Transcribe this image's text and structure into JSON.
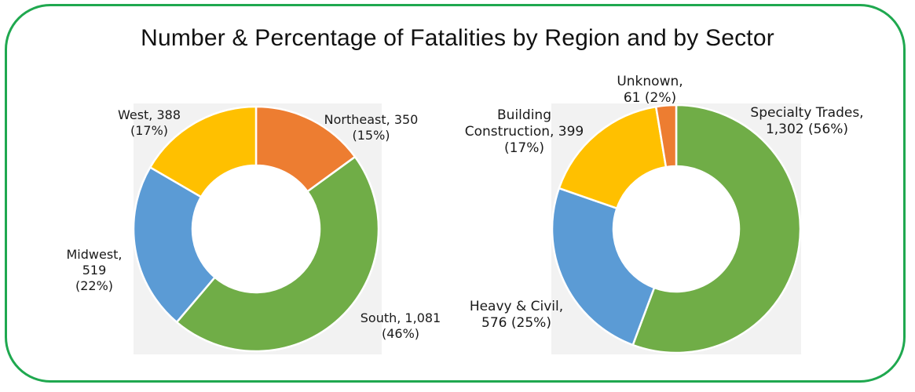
{
  "title": "Number & Percentage of Fatalities by Region and by Sector",
  "colors": {
    "border": "#1fa84f"
  },
  "chart_data": [
    {
      "type": "pie",
      "donut": true,
      "categories": [
        "Northeast",
        "South",
        "Midwest",
        "West"
      ],
      "values": [
        350,
        1081,
        519,
        388
      ],
      "percentages": [
        15,
        46,
        22,
        17
      ],
      "colors": [
        "#ed7d31",
        "#70ad47",
        "#5b9bd5",
        "#ffc000"
      ],
      "labels": [
        "Northeast, 350\n(15%)",
        "South, 1,081\n(46%)",
        "Midwest,\n519\n(22%)",
        "West, 388\n(17%)"
      ]
    },
    {
      "type": "pie",
      "donut": true,
      "categories": [
        "Specialty Trades",
        "Heavy & Civil",
        "Building Construction",
        "Unknown"
      ],
      "values": [
        1302,
        576,
        399,
        61
      ],
      "percentages": [
        56,
        25,
        17,
        2
      ],
      "colors": [
        "#70ad47",
        "#5b9bd5",
        "#ffc000",
        "#ed7d31"
      ],
      "labels": [
        "Specialty Trades,\n1,302 (56%)",
        "Heavy & Civil,\n576 (25%)",
        "Building\nConstruction, 399\n(17%)",
        "Unknown,\n61 (2%)"
      ]
    }
  ]
}
